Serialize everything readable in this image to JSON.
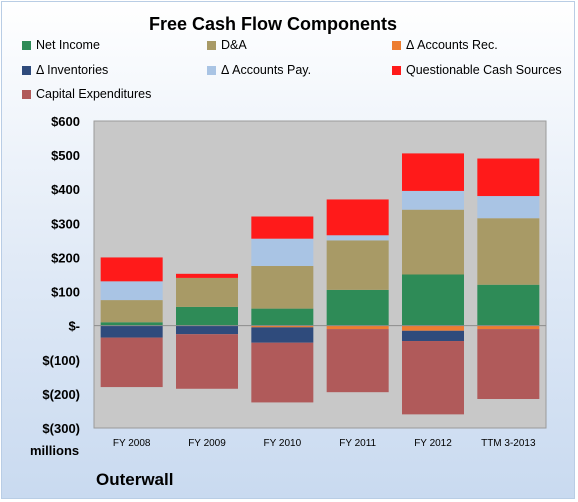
{
  "chart_data": {
    "type": "bar",
    "stacked": true,
    "title": "Free Cash Flow Components",
    "ylabel": "millions",
    "ylim": [
      -300,
      600
    ],
    "yticks": [
      600,
      500,
      400,
      300,
      200,
      100,
      0,
      -100,
      -200,
      -300
    ],
    "ytick_labels": [
      "$600",
      "$500",
      "$400",
      "$300",
      "$200",
      "$100",
      "$-",
      "$(100)",
      "$(200)",
      "$(300)"
    ],
    "categories": [
      "FY 2008",
      "FY 2009",
      "FY 2010",
      "FY 2011",
      "FY 2012",
      "TTM 3-2013"
    ],
    "legend_placement": "top",
    "grid": false,
    "series": [
      {
        "name": "Net Income",
        "color": "#2e8b57",
        "values": [
          10,
          55,
          50,
          105,
          150,
          120
        ]
      },
      {
        "name": "D&A",
        "color": "#a89a66",
        "values": [
          65,
          85,
          125,
          145,
          190,
          195
        ]
      },
      {
        "name": "Δ Accounts Rec.",
        "color": "#ed7d31",
        "values": [
          0,
          0,
          -5,
          -10,
          -15,
          -10
        ]
      },
      {
        "name": "Δ Inventories",
        "color": "#2f4b7c",
        "values": [
          -35,
          -25,
          -45,
          0,
          -30,
          0
        ]
      },
      {
        "name": "Δ Accounts Pay.",
        "color": "#a9c4e4",
        "values": [
          55,
          0,
          80,
          15,
          55,
          65
        ]
      },
      {
        "name": "Questionable Cash Sources",
        "color": "#ff1a1a",
        "values": [
          70,
          12,
          65,
          105,
          110,
          110
        ]
      },
      {
        "name": "Capital Expenditures",
        "color": "#b05a5a",
        "values": [
          -145,
          -160,
          -175,
          -185,
          -215,
          -205
        ]
      }
    ]
  },
  "labels": {
    "units": "millions",
    "company": "Outerwall"
  }
}
